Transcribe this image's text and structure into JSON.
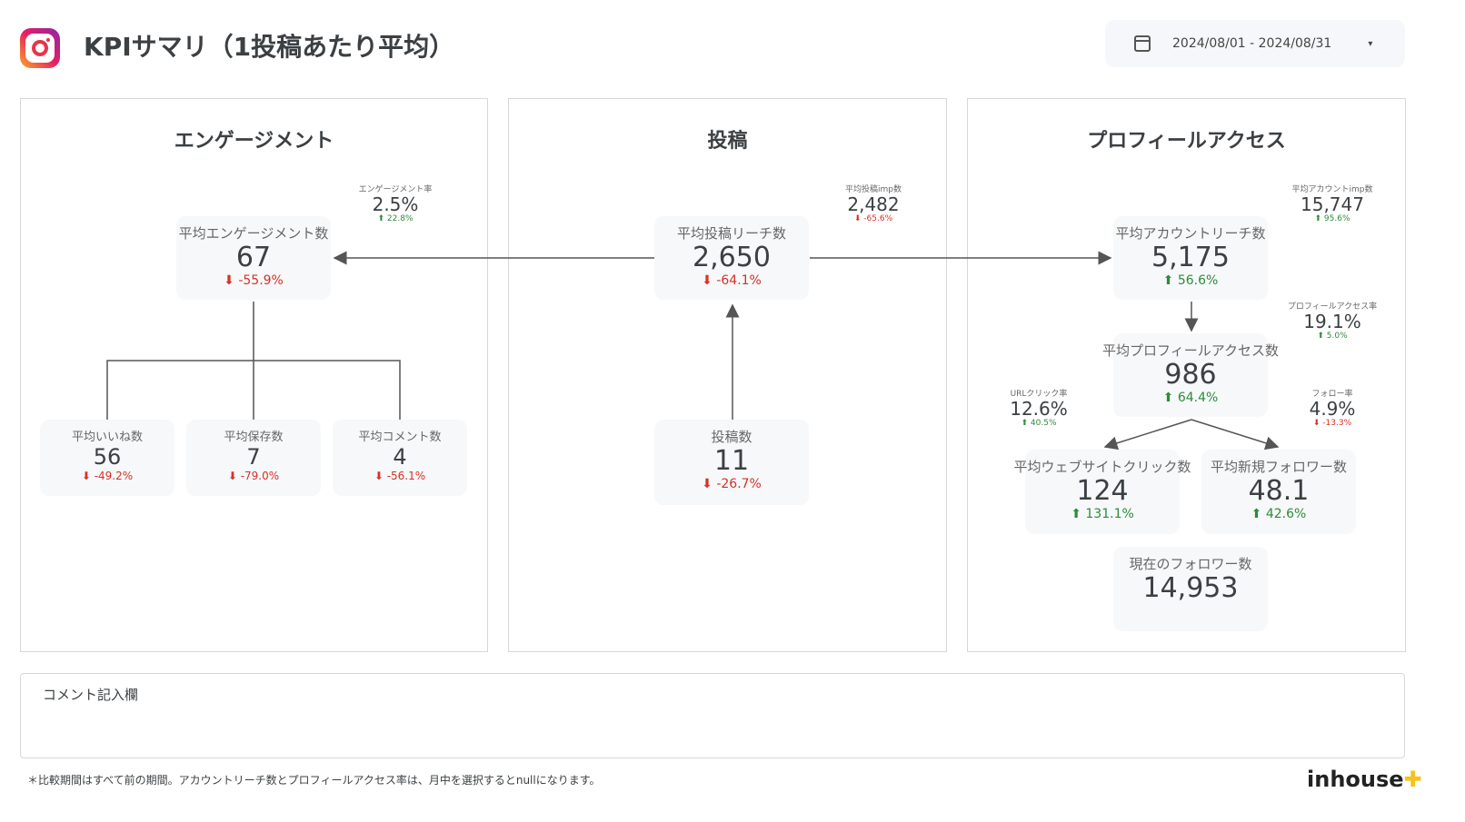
{
  "header": {
    "title": "KPIサマリ（1投稿あたり平均）",
    "date_range": "2024/08/01 - 2024/08/31",
    "caret": "▾"
  },
  "panels": {
    "engagement": "エンゲージメント",
    "posts": "投稿",
    "profile": "プロフィールアクセス"
  },
  "cards": {
    "engagement": {
      "label": "平均エンゲージメント数",
      "value": "67",
      "change": "⬇ -55.9%",
      "dir": "down"
    },
    "likes": {
      "label": "平均いいね数",
      "value": "56",
      "change": "⬇ -49.2%",
      "dir": "down"
    },
    "saves": {
      "label": "平均保存数",
      "value": "7",
      "change": "⬇ -79.0%",
      "dir": "down"
    },
    "comments": {
      "label": "平均コメント数",
      "value": "4",
      "change": "⬇ -56.1%",
      "dir": "down"
    },
    "post_reach": {
      "label": "平均投稿リーチ数",
      "value": "2,650",
      "change": "⬇ -64.1%",
      "dir": "down"
    },
    "post_count": {
      "label": "投稿数",
      "value": "11",
      "change": "⬇ -26.7%",
      "dir": "down"
    },
    "account_reach": {
      "label": "平均アカウントリーチ数",
      "value": "5,175",
      "change": "⬆ 56.6%",
      "dir": "up"
    },
    "profile_access": {
      "label": "平均プロフィールアクセス数",
      "value": "986",
      "change": "⬆ 64.4%",
      "dir": "up"
    },
    "web_clicks": {
      "label": "平均ウェブサイトクリック数",
      "value": "124",
      "change": "⬆ 131.1%",
      "dir": "up"
    },
    "new_followers": {
      "label": "平均新規フォロワー数",
      "value": "48.1",
      "change": "⬆ 42.6%",
      "dir": "up"
    },
    "followers": {
      "label": "現在のフォロワー数",
      "value": "14,953"
    }
  },
  "minis": {
    "eng_rate": {
      "label": "エンゲージメント率",
      "value": "2.5%",
      "change": "⬆ 22.8%"
    },
    "post_imp": {
      "label": "平均投稿imp数",
      "value": "2,482",
      "change": "⬇ -65.6%"
    },
    "account_imp": {
      "label": "平均アカウントimp数",
      "value": "15,747",
      "change": "⬆ 95.6%"
    },
    "profile_rate": {
      "label": "プロフィールアクセス率",
      "value": "19.1%",
      "change": "⬆ 5.0%"
    },
    "url_rate": {
      "label": "URLクリック率",
      "value": "12.6%",
      "change": "⬆ 40.5%"
    },
    "follow_rate": {
      "label": "フォロー率",
      "value": "4.9%",
      "change": "⬇ -13.3%"
    }
  },
  "colors": {
    "up": "#2e8b3a",
    "down": "#d93025",
    "brand_accent": "#f6c21c"
  },
  "comment_label": "コメント記入欄",
  "footnote": "＊比較期間はすべて前の期間。アカウントリーチ数とプロフィールアクセス率は、月中を選択するとnullになります。",
  "brand": {
    "name": "inhouse",
    "plus": "✚"
  }
}
